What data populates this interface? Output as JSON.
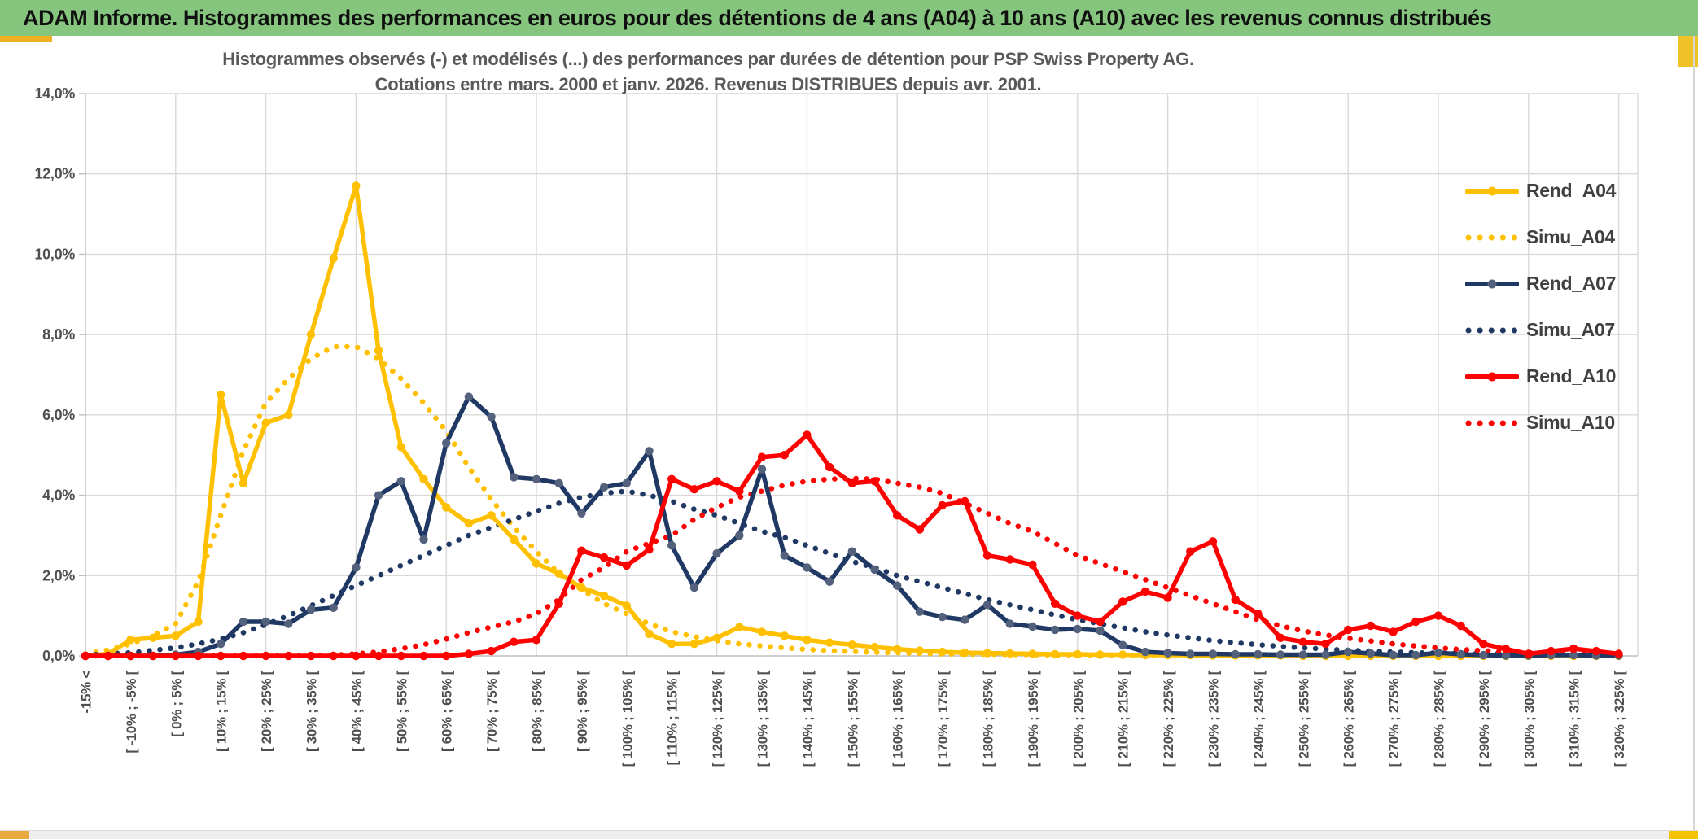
{
  "header": {
    "title": "ADAM Informe. Histogrammes des performances en euros pour des détentions de 4 ans (A04) à 10 ans (A10) avec les revenus connus distribués"
  },
  "chart_data": {
    "type": "line",
    "title_line1": "Histogrammes observés (-) et modélisés (...) des performances par durées de détention pour PSP Swiss Property AG.",
    "title_line2": "Cotations entre mars. 2000 et janv. 2026. Revenus DISTRIBUES depuis avr. 2001.",
    "ylabel": "",
    "xlabel": "",
    "ylim": [
      0,
      14
    ],
    "grid": true,
    "legend_position": "right-inside",
    "y_ticks": [
      "0,0%",
      "2,0%",
      "4,0%",
      "6,0%",
      "8,0%",
      "10,0%",
      "12,0%",
      "14,0%"
    ],
    "categories": [
      "-15% <",
      "",
      "[ -10% ; -5% [",
      "",
      "[ 0% ; 5% [",
      "",
      "[ 10% ; 15% [",
      "",
      "[ 20% ; 25% [",
      "",
      "[ 30% ; 35% [",
      "",
      "[ 40% ; 45% [",
      "",
      "[ 50% ; 55% [",
      "",
      "[ 60% ; 65% [",
      "",
      "[ 70% ; 75% [",
      "",
      "[ 80% ; 85% [",
      "",
      "[ 90% ; 95% [",
      "",
      "[ 100% ; 105% [",
      "",
      "[ 110% ; 115% [",
      "",
      "[ 120% ; 125% [",
      "",
      "[ 130% ; 135% [",
      "",
      "[ 140% ; 145% [",
      "",
      "[ 150% ; 155% [",
      "",
      "[ 160% ; 165% [",
      "",
      "[ 170% ; 175% [",
      "",
      "[ 180% ; 185% [",
      "",
      "[ 190% ; 195% [",
      "",
      "[ 200% ; 205% [",
      "",
      "[ 210% ; 215% [",
      "",
      "[ 220% ; 225% [",
      "",
      "[ 230% ; 235% [",
      "",
      "[ 240% ; 245% [",
      "",
      "[ 250% ; 255% [",
      "",
      "[ 260% ; 265% [",
      "",
      "[ 270% ; 275% [",
      "",
      "[ 280% ; 285% [",
      "",
      "[ 290% ; 295% [",
      "",
      "[ 300% ; 305% [",
      "",
      "[ 310% ; 315% [",
      "",
      "[ 320% ; 325% ["
    ],
    "series": [
      {
        "name": "Rend_A04",
        "style": "solid",
        "color": "#FFC000",
        "marker_color": "#FFC000",
        "values": [
          0,
          0.05,
          0.4,
          0.45,
          0.5,
          0.85,
          6.5,
          4.3,
          5.8,
          6.0,
          8.0,
          9.9,
          11.7,
          7.6,
          5.2,
          4.4,
          3.7,
          3.3,
          3.5,
          2.9,
          2.3,
          2.05,
          1.7,
          1.5,
          1.25,
          0.55,
          0.3,
          0.3,
          0.45,
          0.72,
          0.6,
          0.5,
          0.4,
          0.33,
          0.28,
          0.22,
          0.17,
          0.13,
          0.1,
          0.08,
          0.07,
          0.06,
          0.05,
          0.04,
          0.04,
          0.03,
          0.03,
          0.02,
          0.02,
          0.02,
          0.01,
          0.01,
          0.01,
          0.01,
          0,
          0,
          0,
          0,
          0,
          0,
          0,
          0,
          0,
          0,
          0,
          0,
          0,
          0,
          0
        ]
      },
      {
        "name": "Simu_A04",
        "style": "dotted",
        "color": "#FFC000",
        "values": [
          0.05,
          0.15,
          0.3,
          0.5,
          0.8,
          1.85,
          3.5,
          5.1,
          6.3,
          6.9,
          7.4,
          7.7,
          7.7,
          7.4,
          6.9,
          6.3,
          5.6,
          4.7,
          3.9,
          3.2,
          2.6,
          2.05,
          1.65,
          1.3,
          1.05,
          0.8,
          0.6,
          0.48,
          0.38,
          0.3,
          0.25,
          0.2,
          0.16,
          0.13,
          0.11,
          0.09,
          0.08,
          0.06,
          0.05,
          0.04,
          0.04,
          0.03,
          0.03,
          0.02,
          0.02,
          0.02,
          0.01,
          0.01,
          0.01,
          0.01,
          0.01,
          0,
          0,
          0,
          0,
          0,
          0,
          0,
          0,
          0,
          0,
          0,
          0,
          0,
          0,
          0,
          0,
          0,
          0
        ]
      },
      {
        "name": "Rend_A07",
        "style": "solid",
        "color": "#1F3864",
        "marker_color": "#53617C",
        "values": [
          0,
          0,
          0,
          0,
          0.03,
          0.1,
          0.3,
          0.85,
          0.85,
          0.8,
          1.15,
          1.2,
          2.2,
          4.0,
          4.35,
          2.9,
          5.3,
          6.45,
          5.95,
          4.45,
          4.4,
          4.3,
          3.55,
          4.2,
          4.3,
          5.1,
          2.75,
          1.7,
          2.55,
          3.0,
          4.65,
          2.5,
          2.2,
          1.85,
          2.6,
          2.15,
          1.75,
          1.1,
          0.97,
          0.9,
          1.27,
          0.8,
          0.73,
          0.65,
          0.67,
          0.63,
          0.27,
          0.1,
          0.07,
          0.05,
          0.05,
          0.04,
          0.04,
          0.03,
          0.03,
          0.03,
          0.1,
          0.06,
          0.02,
          0.02,
          0.08,
          0.04,
          0.02,
          0.01,
          0.01,
          0.02,
          0.02,
          0.01,
          0.01
        ]
      },
      {
        "name": "Simu_A07",
        "style": "dotted",
        "color": "#1F3864",
        "values": [
          0.02,
          0.05,
          0.08,
          0.14,
          0.2,
          0.3,
          0.42,
          0.58,
          0.78,
          1.0,
          1.25,
          1.5,
          1.75,
          2.0,
          2.25,
          2.5,
          2.75,
          3.0,
          3.2,
          3.4,
          3.6,
          3.8,
          3.95,
          4.05,
          4.1,
          4.0,
          3.85,
          3.65,
          3.5,
          3.3,
          3.1,
          2.95,
          2.75,
          2.55,
          2.35,
          2.2,
          2.0,
          1.85,
          1.7,
          1.55,
          1.4,
          1.27,
          1.15,
          1.02,
          0.9,
          0.8,
          0.7,
          0.6,
          0.52,
          0.45,
          0.38,
          0.33,
          0.28,
          0.24,
          0.2,
          0.17,
          0.14,
          0.12,
          0.1,
          0.08,
          0.07,
          0.06,
          0.05,
          0.04,
          0.03,
          0.03,
          0.02,
          0.02,
          0.01
        ]
      },
      {
        "name": "Rend_A10",
        "style": "solid",
        "color": "#FF0000",
        "marker_color": "#FF0000",
        "values": [
          0,
          0,
          0,
          0,
          0,
          0,
          0,
          0,
          0,
          0,
          0,
          0,
          0,
          0,
          0,
          0,
          0,
          0.05,
          0.12,
          0.35,
          0.4,
          1.3,
          2.62,
          2.45,
          2.25,
          2.65,
          4.4,
          4.15,
          4.35,
          4.1,
          4.95,
          5.0,
          5.5,
          4.7,
          4.3,
          4.35,
          3.5,
          3.15,
          3.75,
          3.85,
          2.5,
          2.4,
          2.27,
          1.3,
          1.0,
          0.85,
          1.35,
          1.6,
          1.45,
          2.6,
          2.85,
          1.4,
          1.05,
          0.45,
          0.35,
          0.3,
          0.65,
          0.75,
          0.6,
          0.85,
          1.0,
          0.75,
          0.3,
          0.17,
          0.05,
          0.12,
          0.18,
          0.12,
          0.05
        ]
      },
      {
        "name": "Simu_A10",
        "style": "dotted",
        "color": "#FF0000",
        "values": [
          0,
          0,
          0,
          0,
          0,
          0,
          0,
          0,
          0,
          0,
          0,
          0.02,
          0.05,
          0.1,
          0.18,
          0.28,
          0.42,
          0.58,
          0.72,
          0.85,
          1.05,
          1.4,
          1.9,
          2.2,
          2.6,
          2.8,
          3.0,
          3.4,
          3.7,
          3.95,
          4.1,
          4.25,
          4.35,
          4.4,
          4.42,
          4.4,
          4.3,
          4.2,
          4.05,
          3.8,
          3.55,
          3.3,
          3.1,
          2.8,
          2.5,
          2.3,
          2.1,
          1.9,
          1.7,
          1.5,
          1.3,
          1.1,
          0.9,
          0.75,
          0.62,
          0.52,
          0.44,
          0.37,
          0.3,
          0.25,
          0.2,
          0.16,
          0.13,
          0.1,
          0.08,
          0.06,
          0.05,
          0.04,
          0.03
        ]
      }
    ]
  },
  "colors": {
    "header_bg": "#86C57E",
    "accent_gold": "#EFAF22",
    "grid": "#D9D9D9",
    "axis": "#BFBFBF",
    "title_text": "#595959",
    "axis_text": "#4f4f4f",
    "legend_text": "#404040"
  }
}
